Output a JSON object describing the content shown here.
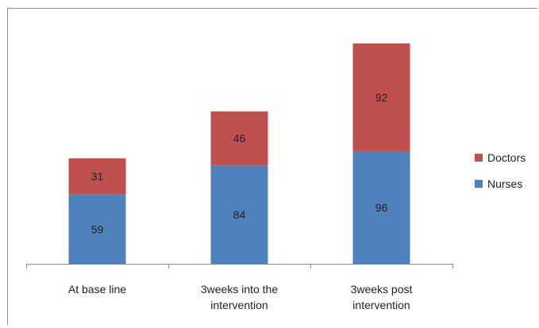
{
  "chart_data": {
    "type": "bar",
    "stacked": true,
    "categories": [
      [
        "At base line"
      ],
      [
        "3weeks into the",
        "intervention"
      ],
      [
        "3weeks post",
        "intervention"
      ]
    ],
    "series": [
      {
        "name": "Nurses",
        "values": [
          59,
          84,
          96
        ],
        "color": "#4f81bd"
      },
      {
        "name": "Doctors",
        "values": [
          31,
          46,
          92
        ],
        "color": "#c0504d"
      }
    ],
    "ylim": [
      0,
      200
    ],
    "grid": false,
    "legend_position": "right",
    "show_data_labels": true
  }
}
